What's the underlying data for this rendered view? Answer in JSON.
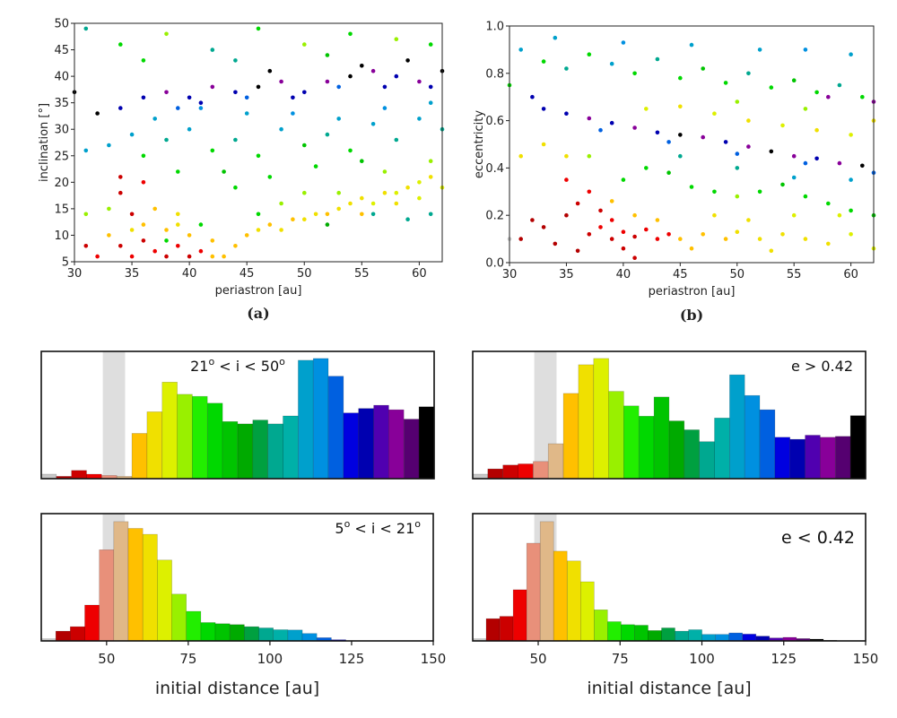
{
  "palette": [
    "#c8c8c8",
    "#b30000",
    "#cc0000",
    "#ee0000",
    "#e8907a",
    "#e0b888",
    "#ffc000",
    "#f0e000",
    "#ddf000",
    "#99f000",
    "#22ee00",
    "#00d800",
    "#00c400",
    "#00aa00",
    "#00a040",
    "#00a890",
    "#00b0a8",
    "#00a0cc",
    "#0090e0",
    "#0060e0",
    "#0000e0",
    "#0000b0",
    "#5000b0",
    "#880099",
    "#550070",
    "#000000"
  ],
  "band_color": "#dedede",
  "chart_data": [
    {
      "type": "scatter",
      "panel_label": "(a)",
      "xlabel": "periastron [au]",
      "ylabel": "inclination [°]",
      "xlim": [
        30,
        62
      ],
      "ylim": [
        5,
        50
      ],
      "xticks": [
        30,
        35,
        40,
        45,
        50,
        55,
        60
      ],
      "yticks": [
        5,
        10,
        15,
        20,
        25,
        30,
        35,
        40,
        45,
        50
      ],
      "points": [
        [
          34,
          8,
          3
        ],
        [
          35,
          6,
          4
        ],
        [
          36,
          9,
          3
        ],
        [
          37,
          7,
          4
        ],
        [
          38,
          6,
          3
        ],
        [
          39,
          8,
          4
        ],
        [
          40,
          6,
          3
        ],
        [
          41,
          7,
          4
        ],
        [
          42,
          6,
          7
        ],
        [
          43,
          6,
          7
        ],
        [
          36,
          12,
          7
        ],
        [
          38,
          11,
          7
        ],
        [
          35,
          14,
          3
        ],
        [
          34,
          18,
          3
        ],
        [
          36,
          20,
          4
        ],
        [
          33,
          10,
          7
        ],
        [
          32,
          6,
          4
        ],
        [
          31,
          8,
          3
        ],
        [
          37,
          15,
          7
        ],
        [
          39,
          12,
          8
        ],
        [
          40,
          10,
          7
        ],
        [
          42,
          9,
          7
        ],
        [
          44,
          8,
          7
        ],
        [
          41,
          12,
          12
        ],
        [
          39,
          14,
          8
        ],
        [
          38,
          9,
          12
        ],
        [
          35,
          11,
          8
        ],
        [
          33,
          15,
          10
        ],
        [
          31,
          14,
          10
        ],
        [
          34,
          21,
          3
        ],
        [
          45,
          10,
          7
        ],
        [
          46,
          11,
          8
        ],
        [
          47,
          12,
          7
        ],
        [
          48,
          11,
          8
        ],
        [
          49,
          13,
          7
        ],
        [
          50,
          13,
          8
        ],
        [
          51,
          14,
          8
        ],
        [
          52,
          14,
          7
        ],
        [
          53,
          15,
          8
        ],
        [
          54,
          16,
          8
        ],
        [
          55,
          17,
          8
        ],
        [
          56,
          16,
          9
        ],
        [
          57,
          18,
          8
        ],
        [
          58,
          18,
          9
        ],
        [
          59,
          19,
          8
        ],
        [
          60,
          20,
          9
        ],
        [
          61,
          21,
          8
        ],
        [
          62,
          19,
          9
        ],
        [
          55,
          14,
          7
        ],
        [
          58,
          16,
          8
        ],
        [
          60,
          17,
          9
        ],
        [
          53,
          18,
          10
        ],
        [
          57,
          22,
          10
        ],
        [
          61,
          24,
          10
        ],
        [
          48,
          16,
          10
        ],
        [
          50,
          18,
          10
        ],
        [
          46,
          14,
          12
        ],
        [
          52,
          12,
          14
        ],
        [
          56,
          14,
          16
        ],
        [
          59,
          13,
          16
        ],
        [
          61,
          14,
          16
        ],
        [
          36,
          25,
          12
        ],
        [
          38,
          28,
          16
        ],
        [
          40,
          30,
          18
        ],
        [
          42,
          26,
          12
        ],
        [
          44,
          28,
          16
        ],
        [
          46,
          25,
          12
        ],
        [
          48,
          30,
          18
        ],
        [
          50,
          27,
          13
        ],
        [
          52,
          29,
          16
        ],
        [
          54,
          26,
          12
        ],
        [
          56,
          31,
          18
        ],
        [
          58,
          28,
          16
        ],
        [
          60,
          32,
          18
        ],
        [
          62,
          30,
          16
        ],
        [
          39,
          22,
          12
        ],
        [
          43,
          22,
          13
        ],
        [
          47,
          21,
          12
        ],
        [
          51,
          23,
          12
        ],
        [
          55,
          24,
          13
        ],
        [
          35,
          29,
          18
        ],
        [
          33,
          27,
          18
        ],
        [
          31,
          26,
          18
        ],
        [
          45,
          33,
          18
        ],
        [
          49,
          33,
          19
        ],
        [
          53,
          32,
          18
        ],
        [
          57,
          34,
          19
        ],
        [
          41,
          34,
          19
        ],
        [
          37,
          32,
          18
        ],
        [
          61,
          35,
          18
        ],
        [
          44,
          19,
          12
        ],
        [
          34,
          34,
          22
        ],
        [
          36,
          36,
          22
        ],
        [
          38,
          37,
          24
        ],
        [
          40,
          36,
          22
        ],
        [
          42,
          38,
          24
        ],
        [
          44,
          37,
          22
        ],
        [
          46,
          38,
          26
        ],
        [
          48,
          39,
          24
        ],
        [
          50,
          37,
          22
        ],
        [
          52,
          39,
          24
        ],
        [
          54,
          40,
          26
        ],
        [
          56,
          41,
          24
        ],
        [
          58,
          40,
          22
        ],
        [
          60,
          39,
          24
        ],
        [
          62,
          41,
          26
        ],
        [
          41,
          35,
          22
        ],
        [
          45,
          36,
          20
        ],
        [
          49,
          36,
          22
        ],
        [
          53,
          38,
          20
        ],
        [
          57,
          38,
          22
        ],
        [
          61,
          38,
          22
        ],
        [
          39,
          34,
          20
        ],
        [
          47,
          41,
          26
        ],
        [
          55,
          42,
          26
        ],
        [
          59,
          43,
          26
        ],
        [
          31,
          49,
          16
        ],
        [
          34,
          46,
          12
        ],
        [
          38,
          48,
          10
        ],
        [
          42,
          45,
          16
        ],
        [
          46,
          49,
          12
        ],
        [
          50,
          46,
          10
        ],
        [
          54,
          48,
          12
        ],
        [
          58,
          47,
          10
        ],
        [
          61,
          46,
          12
        ],
        [
          44,
          43,
          16
        ],
        [
          36,
          43,
          12
        ],
        [
          52,
          44,
          13
        ],
        [
          32,
          33,
          26
        ],
        [
          30,
          37,
          26
        ]
      ]
    },
    {
      "type": "scatter",
      "panel_label": "(b)",
      "xlabel": "periastron [au]",
      "ylabel": "eccentricity",
      "xlim": [
        30,
        62
      ],
      "ylim": [
        0,
        1
      ],
      "xticks": [
        30,
        35,
        40,
        45,
        50,
        55,
        60
      ],
      "yticks": [
        "0.0",
        "0.2",
        "0.4",
        "0.6",
        "0.8",
        "1.0"
      ],
      "points": [
        [
          37,
          0.12,
          3
        ],
        [
          38,
          0.15,
          4
        ],
        [
          39,
          0.1,
          3
        ],
        [
          40,
          0.13,
          4
        ],
        [
          41,
          0.11,
          3
        ],
        [
          42,
          0.14,
          4
        ],
        [
          39,
          0.18,
          4
        ],
        [
          38,
          0.22,
          3
        ],
        [
          36,
          0.25,
          3
        ],
        [
          35,
          0.2,
          2
        ],
        [
          33,
          0.15,
          2
        ],
        [
          32,
          0.18,
          2
        ],
        [
          31,
          0.1,
          2
        ],
        [
          34,
          0.08,
          2
        ],
        [
          36,
          0.05,
          2
        ],
        [
          40,
          0.06,
          3
        ],
        [
          41,
          0.02,
          3
        ],
        [
          43,
          0.1,
          4
        ],
        [
          44,
          0.12,
          4
        ],
        [
          37,
          0.3,
          4
        ],
        [
          35,
          0.35,
          4
        ],
        [
          39,
          0.26,
          7
        ],
        [
          41,
          0.2,
          7
        ],
        [
          43,
          0.18,
          7
        ],
        [
          30,
          0.1,
          1
        ],
        [
          45,
          0.1,
          7
        ],
        [
          47,
          0.12,
          7
        ],
        [
          49,
          0.1,
          7
        ],
        [
          50,
          0.13,
          8
        ],
        [
          52,
          0.1,
          8
        ],
        [
          54,
          0.12,
          8
        ],
        [
          56,
          0.1,
          8
        ],
        [
          58,
          0.08,
          8
        ],
        [
          60,
          0.12,
          9
        ],
        [
          62,
          0.06,
          9
        ],
        [
          48,
          0.2,
          8
        ],
        [
          51,
          0.18,
          8
        ],
        [
          55,
          0.2,
          9
        ],
        [
          59,
          0.2,
          9
        ],
        [
          46,
          0.06,
          7
        ],
        [
          53,
          0.05,
          8
        ],
        [
          40,
          0.35,
          12
        ],
        [
          42,
          0.4,
          12
        ],
        [
          44,
          0.38,
          13
        ],
        [
          46,
          0.32,
          12
        ],
        [
          48,
          0.3,
          12
        ],
        [
          50,
          0.28,
          10
        ],
        [
          52,
          0.3,
          12
        ],
        [
          54,
          0.33,
          13
        ],
        [
          56,
          0.28,
          12
        ],
        [
          58,
          0.25,
          12
        ],
        [
          60,
          0.22,
          12
        ],
        [
          62,
          0.2,
          13
        ],
        [
          45,
          0.45,
          16
        ],
        [
          50,
          0.4,
          16
        ],
        [
          55,
          0.36,
          18
        ],
        [
          60,
          0.35,
          18
        ],
        [
          35,
          0.45,
          8
        ],
        [
          33,
          0.5,
          8
        ],
        [
          31,
          0.45,
          8
        ],
        [
          37,
          0.45,
          10
        ],
        [
          33,
          0.65,
          22
        ],
        [
          35,
          0.63,
          22
        ],
        [
          37,
          0.61,
          24
        ],
        [
          39,
          0.59,
          22
        ],
        [
          41,
          0.57,
          24
        ],
        [
          43,
          0.55,
          22
        ],
        [
          45,
          0.54,
          26
        ],
        [
          47,
          0.53,
          24
        ],
        [
          49,
          0.51,
          22
        ],
        [
          51,
          0.49,
          24
        ],
        [
          53,
          0.47,
          26
        ],
        [
          55,
          0.45,
          24
        ],
        [
          57,
          0.44,
          22
        ],
        [
          59,
          0.42,
          24
        ],
        [
          61,
          0.41,
          26
        ],
        [
          38,
          0.56,
          20
        ],
        [
          44,
          0.51,
          20
        ],
        [
          50,
          0.46,
          20
        ],
        [
          56,
          0.42,
          20
        ],
        [
          62,
          0.38,
          20
        ],
        [
          42,
          0.65,
          9
        ],
        [
          45,
          0.66,
          8
        ],
        [
          48,
          0.63,
          9
        ],
        [
          51,
          0.6,
          8
        ],
        [
          54,
          0.58,
          9
        ],
        [
          57,
          0.56,
          8
        ],
        [
          60,
          0.54,
          9
        ],
        [
          62,
          0.6,
          8
        ],
        [
          50,
          0.68,
          10
        ],
        [
          56,
          0.65,
          10
        ],
        [
          31,
          0.9,
          18
        ],
        [
          33,
          0.85,
          12
        ],
        [
          35,
          0.82,
          16
        ],
        [
          37,
          0.88,
          12
        ],
        [
          39,
          0.84,
          18
        ],
        [
          41,
          0.8,
          12
        ],
        [
          43,
          0.86,
          16
        ],
        [
          45,
          0.78,
          12
        ],
        [
          47,
          0.82,
          13
        ],
        [
          49,
          0.76,
          12
        ],
        [
          51,
          0.8,
          16
        ],
        [
          53,
          0.74,
          12
        ],
        [
          55,
          0.77,
          13
        ],
        [
          57,
          0.72,
          12
        ],
        [
          59,
          0.75,
          16
        ],
        [
          61,
          0.7,
          12
        ],
        [
          46,
          0.92,
          18
        ],
        [
          52,
          0.9,
          18
        ],
        [
          56,
          0.9,
          19
        ],
        [
          60,
          0.88,
          18
        ],
        [
          34,
          0.95,
          18
        ],
        [
          40,
          0.93,
          19
        ],
        [
          58,
          0.7,
          24
        ],
        [
          62,
          0.68,
          24
        ],
        [
          30,
          0.75,
          12
        ],
        [
          32,
          0.7,
          22
        ]
      ]
    },
    {
      "type": "bar",
      "annotation": [
        "21",
        "o",
        " < i < 50",
        "o"
      ],
      "xlim": [
        30,
        150
      ],
      "ylim": [
        0,
        430
      ],
      "bin_start": 30,
      "bin_width": 4.615,
      "band": [
        48.8,
        55.6
      ],
      "xticks": [],
      "xlabel": "",
      "values": [
        15,
        8,
        28,
        15,
        11,
        8,
        153,
        226,
        326,
        285,
        278,
        255,
        193,
        185,
        198,
        185,
        212,
        400,
        406,
        346,
        222,
        237,
        248,
        233,
        201,
        243
      ]
    },
    {
      "type": "bar",
      "annotation": [
        "e > 0.42"
      ],
      "xlim": [
        30,
        150
      ],
      "ylim": [
        0,
        430
      ],
      "bin_start": 30,
      "bin_width": 4.615,
      "band": [
        48.8,
        55.6
      ],
      "xticks": [],
      "xlabel": "",
      "values": [
        15,
        33,
        46,
        50,
        58,
        118,
        288,
        385,
        406,
        295,
        246,
        211,
        276,
        195,
        165,
        125,
        205,
        351,
        281,
        233,
        140,
        133,
        147,
        140,
        143,
        213
      ]
    },
    {
      "type": "bar",
      "annotation": [
        "5",
        "o",
        " < i < 21",
        "o"
      ],
      "xlim": [
        30,
        150
      ],
      "ylim": [
        0,
        430
      ],
      "bin_start": 30,
      "bin_width": 4.44,
      "band": [
        48.8,
        55.6
      ],
      "xticks": [
        50,
        75,
        100,
        125,
        150
      ],
      "xlabel": "initial distance [au]",
      "values": [
        7,
        33,
        48,
        121,
        308,
        403,
        380,
        360,
        273,
        158,
        100,
        62,
        58,
        55,
        48,
        44,
        38,
        37,
        25,
        11,
        4,
        0,
        0,
        0,
        0,
        0
      ]
    },
    {
      "type": "bar",
      "annotation": [
        "e < 0.42"
      ],
      "xlim": [
        30,
        150
      ],
      "ylim": [
        0,
        430
      ],
      "bin_start": 30,
      "bin_width": 4.12,
      "band": [
        48.8,
        55.6
      ],
      "xticks": [
        50,
        75,
        100,
        125,
        150
      ],
      "xlabel": "initial distance [au]",
      "values": [
        7,
        75,
        83,
        173,
        330,
        403,
        303,
        270,
        200,
        105,
        65,
        55,
        53,
        35,
        44,
        33,
        38,
        22,
        22,
        27,
        23,
        16,
        10,
        12,
        8,
        6,
        2
      ]
    }
  ]
}
